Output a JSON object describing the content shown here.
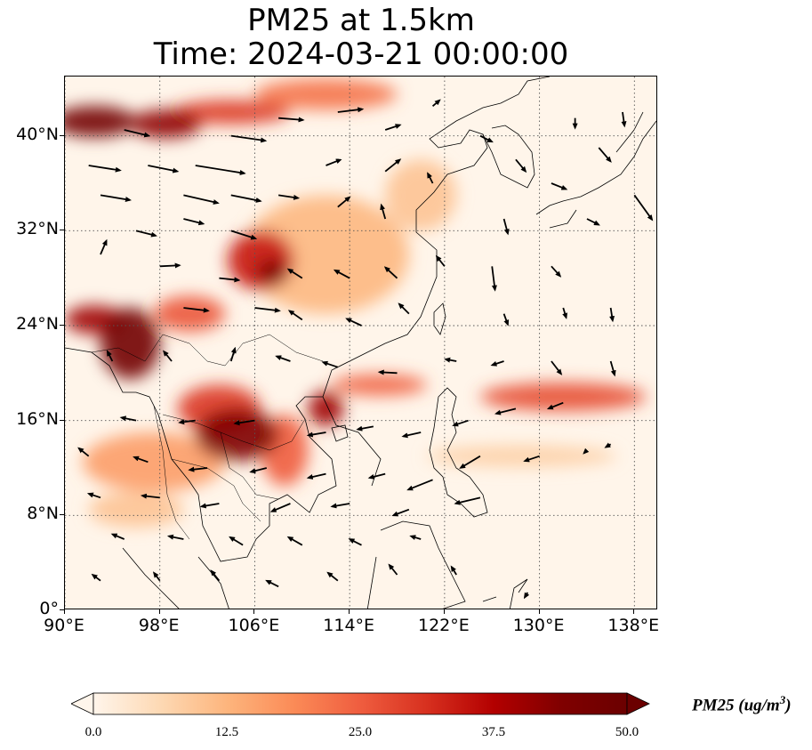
{
  "title": {
    "line1": "PM25 at 1.5km",
    "line2": "Time: 2024-03-21 00:00:00"
  },
  "map": {
    "projection": "PlateCarree",
    "lon_range": [
      90,
      140
    ],
    "lat_range": [
      0,
      45
    ],
    "gridlines": "dotted",
    "lon_ticks": [
      {
        "value": 90,
        "label": "90°E"
      },
      {
        "value": 98,
        "label": "98°E"
      },
      {
        "value": 106,
        "label": "106°E"
      },
      {
        "value": 114,
        "label": "114°E"
      },
      {
        "value": 122,
        "label": "122°E"
      },
      {
        "value": 130,
        "label": "130°E"
      },
      {
        "value": 138,
        "label": "138°E"
      }
    ],
    "lat_ticks": [
      {
        "value": 0,
        "label": "0°"
      },
      {
        "value": 8,
        "label": "8°N"
      },
      {
        "value": 16,
        "label": "16°N"
      },
      {
        "value": 24,
        "label": "24°N"
      },
      {
        "value": 32,
        "label": "32°N"
      },
      {
        "value": 40,
        "label": "40°N"
      }
    ],
    "background_color": "#fff5ea",
    "coastline_color": "#000000",
    "arrow_color": "#000000"
  },
  "pm25_plumes": [
    {
      "lon": 92.5,
      "lat": 41.2,
      "rlon": 3.5,
      "rlat": 1.3,
      "value": 48
    },
    {
      "lon": 98.5,
      "lat": 41.0,
      "rlon": 3.0,
      "rlat": 1.2,
      "value": 42
    },
    {
      "lon": 104,
      "lat": 42.0,
      "rlon": 5.0,
      "rlat": 1.0,
      "value": 30
    },
    {
      "lon": 112,
      "lat": 43.5,
      "rlon": 6.0,
      "rlat": 1.3,
      "value": 22
    },
    {
      "lon": 106.5,
      "lat": 29.5,
      "rlon": 2.8,
      "rlat": 2.5,
      "value": 34
    },
    {
      "lon": 107.5,
      "lat": 28.5,
      "rlon": 1.3,
      "rlat": 1.1,
      "value": 45
    },
    {
      "lon": 95.5,
      "lat": 22.5,
      "rlon": 2.5,
      "rlat": 3.0,
      "value": 48
    },
    {
      "lon": 92.5,
      "lat": 24.5,
      "rlon": 2.5,
      "rlat": 1.2,
      "value": 40
    },
    {
      "lon": 100.5,
      "lat": 25.0,
      "rlon": 3.0,
      "rlat": 1.5,
      "value": 26
    },
    {
      "lon": 104.5,
      "lat": 14.8,
      "rlon": 3.5,
      "rlat": 2.2,
      "value": 44
    },
    {
      "lon": 103.0,
      "lat": 17.0,
      "rlon": 3.5,
      "rlat": 2.0,
      "value": 30
    },
    {
      "lon": 108.5,
      "lat": 13.5,
      "rlon": 2.0,
      "rlat": 3.0,
      "value": 25
    },
    {
      "lon": 112.0,
      "lat": 17.0,
      "rlon": 1.5,
      "rlat": 1.5,
      "value": 40
    },
    {
      "lon": 116.5,
      "lat": 19.0,
      "rlon": 4.0,
      "rlat": 0.9,
      "value": 24
    },
    {
      "lon": 132.0,
      "lat": 18.0,
      "rlon": 7.0,
      "rlat": 1.2,
      "value": 27
    },
    {
      "lon": 97.5,
      "lat": 12.5,
      "rlon": 6.0,
      "rlat": 2.5,
      "value": 16
    },
    {
      "lon": 112.0,
      "lat": 30.0,
      "rlon": 7.0,
      "rlat": 5.0,
      "value": 12
    },
    {
      "lon": 120.0,
      "lat": 35.0,
      "rlon": 3.0,
      "rlat": 3.0,
      "value": 10
    },
    {
      "lon": 128.5,
      "lat": 13.0,
      "rlon": 8.0,
      "rlat": 0.9,
      "value": 8
    },
    {
      "lon": 96.0,
      "lat": 8.5,
      "rlon": 4.0,
      "rlat": 1.5,
      "value": 10
    }
  ],
  "wind_vectors": [
    {
      "lon": 92,
      "lat": 37.5,
      "u": 3.2,
      "v": -0.5
    },
    {
      "lon": 93,
      "lat": 35,
      "u": 3.0,
      "v": -0.5
    },
    {
      "lon": 97,
      "lat": 37.5,
      "u": 3.0,
      "v": -0.6
    },
    {
      "lon": 101,
      "lat": 37.5,
      "u": 5.0,
      "v": -0.8
    },
    {
      "lon": 100,
      "lat": 35,
      "u": 3.5,
      "v": -0.8
    },
    {
      "lon": 104,
      "lat": 35,
      "u": 3.0,
      "v": -0.6
    },
    {
      "lon": 108,
      "lat": 35,
      "u": 2.0,
      "v": -0.3
    },
    {
      "lon": 104,
      "lat": 32,
      "u": 2.5,
      "v": -0.8
    },
    {
      "lon": 96,
      "lat": 32,
      "u": 2.0,
      "v": -0.5
    },
    {
      "lon": 100,
      "lat": 33,
      "u": 2.0,
      "v": -0.5
    },
    {
      "lon": 95,
      "lat": 40.5,
      "u": 2.5,
      "v": -0.6
    },
    {
      "lon": 104,
      "lat": 40,
      "u": 3.5,
      "v": -0.5
    },
    {
      "lon": 108,
      "lat": 41.5,
      "u": 2.5,
      "v": -0.2
    },
    {
      "lon": 113,
      "lat": 42,
      "u": 2.5,
      "v": 0.3
    },
    {
      "lon": 117,
      "lat": 40.5,
      "u": 1.5,
      "v": 0.5
    },
    {
      "lon": 112,
      "lat": 37.5,
      "u": 1.5,
      "v": 0.6
    },
    {
      "lon": 117,
      "lat": 37,
      "u": 1.5,
      "v": 1.2
    },
    {
      "lon": 113,
      "lat": 34,
      "u": 1.2,
      "v": 1.0
    },
    {
      "lon": 117,
      "lat": 33,
      "u": -0.4,
      "v": 1.4
    },
    {
      "lon": 121,
      "lat": 36,
      "u": -0.5,
      "v": 1.0
    },
    {
      "lon": 125,
      "lat": 40,
      "u": 1.2,
      "v": -0.6
    },
    {
      "lon": 128,
      "lat": 38,
      "u": 1.0,
      "v": -1.2
    },
    {
      "lon": 127,
      "lat": 33,
      "u": 0.4,
      "v": -1.5
    },
    {
      "lon": 131,
      "lat": 36,
      "u": 1.5,
      "v": -0.6
    },
    {
      "lon": 135,
      "lat": 39,
      "u": 1.2,
      "v": -1.4
    },
    {
      "lon": 138,
      "lat": 35,
      "u": 1.8,
      "v": -2.5
    },
    {
      "lon": 134,
      "lat": 33,
      "u": 1.2,
      "v": -0.6
    },
    {
      "lon": 131,
      "lat": 29,
      "u": 0.9,
      "v": -1.0
    },
    {
      "lon": 126,
      "lat": 29,
      "u": 0.3,
      "v": -2.4
    },
    {
      "lon": 122,
      "lat": 29,
      "u": -0.8,
      "v": 1.0
    },
    {
      "lon": 118,
      "lat": 28,
      "u": -1.2,
      "v": 1.1
    },
    {
      "lon": 114,
      "lat": 28,
      "u": -1.5,
      "v": 0.8
    },
    {
      "lon": 110,
      "lat": 28,
      "u": -1.4,
      "v": 0.9
    },
    {
      "lon": 103,
      "lat": 28,
      "u": 2.0,
      "v": -0.2
    },
    {
      "lon": 98,
      "lat": 29,
      "u": 2.0,
      "v": 0.1
    },
    {
      "lon": 93,
      "lat": 30,
      "u": 0.6,
      "v": 1.4
    },
    {
      "lon": 100,
      "lat": 25.5,
      "u": 2.5,
      "v": -0.3
    },
    {
      "lon": 106,
      "lat": 25.5,
      "u": 2.5,
      "v": -0.3
    },
    {
      "lon": 110,
      "lat": 24.5,
      "u": -1.3,
      "v": 0.9
    },
    {
      "lon": 115,
      "lat": 24,
      "u": -1.5,
      "v": 0.7
    },
    {
      "lon": 119,
      "lat": 25,
      "u": -1.0,
      "v": 1.0
    },
    {
      "lon": 127,
      "lat": 25,
      "u": 0.4,
      "v": -1.1
    },
    {
      "lon": 132,
      "lat": 25.5,
      "u": 0.3,
      "v": -1.0
    },
    {
      "lon": 136,
      "lat": 25.5,
      "u": 0.2,
      "v": -1.3
    },
    {
      "lon": 136,
      "lat": 21,
      "u": 0.4,
      "v": -1.4
    },
    {
      "lon": 131,
      "lat": 21,
      "u": 1.0,
      "v": -1.3
    },
    {
      "lon": 127,
      "lat": 21,
      "u": -1.2,
      "v": -0.4
    },
    {
      "lon": 123,
      "lat": 21,
      "u": -1.1,
      "v": 0.2
    },
    {
      "lon": 118,
      "lat": 20,
      "u": -1.8,
      "v": 0.1
    },
    {
      "lon": 113,
      "lat": 20.5,
      "u": -1.5,
      "v": 0.5
    },
    {
      "lon": 109,
      "lat": 21,
      "u": -1.4,
      "v": 0.5
    },
    {
      "lon": 104,
      "lat": 21,
      "u": 0.4,
      "v": 1.3
    },
    {
      "lon": 99,
      "lat": 21,
      "u": -0.8,
      "v": 1.0
    },
    {
      "lon": 94,
      "lat": 21,
      "u": -0.5,
      "v": 1.0
    },
    {
      "lon": 128,
      "lat": 17,
      "u": -2.0,
      "v": -0.5
    },
    {
      "lon": 132,
      "lat": 17.5,
      "u": -1.5,
      "v": -0.6
    },
    {
      "lon": 124,
      "lat": 16,
      "u": -1.5,
      "v": -0.5
    },
    {
      "lon": 120,
      "lat": 15,
      "u": -1.8,
      "v": -0.4
    },
    {
      "lon": 116,
      "lat": 15.5,
      "u": -1.6,
      "v": -0.3
    },
    {
      "lon": 112,
      "lat": 15,
      "u": -1.8,
      "v": -0.3
    },
    {
      "lon": 106,
      "lat": 16,
      "u": -2.0,
      "v": -0.3
    },
    {
      "lon": 101,
      "lat": 16,
      "u": -1.6,
      "v": -0.2
    },
    {
      "lon": 96,
      "lat": 16,
      "u": -1.5,
      "v": 0.3
    },
    {
      "lon": 92,
      "lat": 13,
      "u": -1.0,
      "v": 0.8
    },
    {
      "lon": 97,
      "lat": 12.5,
      "u": -1.4,
      "v": 0.5
    },
    {
      "lon": 102,
      "lat": 12,
      "u": -1.8,
      "v": -0.2
    },
    {
      "lon": 107,
      "lat": 12,
      "u": -1.6,
      "v": -0.4
    },
    {
      "lon": 112,
      "lat": 11.5,
      "u": -1.8,
      "v": -0.4
    },
    {
      "lon": 117,
      "lat": 11.5,
      "u": -1.6,
      "v": -0.4
    },
    {
      "lon": 121,
      "lat": 11,
      "u": -2.5,
      "v": -1.0
    },
    {
      "lon": 125,
      "lat": 13,
      "u": -2.0,
      "v": -1.2
    },
    {
      "lon": 130,
      "lat": 13,
      "u": -1.5,
      "v": -0.5
    },
    {
      "lon": 136,
      "lat": 14,
      "u": -0.5,
      "v": -0.3
    },
    {
      "lon": 93,
      "lat": 9.5,
      "u": -1.2,
      "v": 0.4
    },
    {
      "lon": 98,
      "lat": 9.5,
      "u": -1.8,
      "v": 0.2
    },
    {
      "lon": 103,
      "lat": 9,
      "u": -1.8,
      "v": -0.3
    },
    {
      "lon": 109,
      "lat": 9,
      "u": -1.9,
      "v": -0.8
    },
    {
      "lon": 114,
      "lat": 9,
      "u": -1.8,
      "v": -0.3
    },
    {
      "lon": 119,
      "lat": 8.5,
      "u": -1.6,
      "v": -0.6
    },
    {
      "lon": 125,
      "lat": 9.5,
      "u": -2.5,
      "v": -0.6
    },
    {
      "lon": 95,
      "lat": 6,
      "u": -1.2,
      "v": 0.5
    },
    {
      "lon": 100,
      "lat": 6,
      "u": -1.5,
      "v": 0.3
    },
    {
      "lon": 105,
      "lat": 5.5,
      "u": -1.3,
      "v": 0.8
    },
    {
      "lon": 110,
      "lat": 5.5,
      "u": -1.4,
      "v": 0.8
    },
    {
      "lon": 115,
      "lat": 5.5,
      "u": -1.2,
      "v": 0.6
    },
    {
      "lon": 120,
      "lat": 6,
      "u": -1.0,
      "v": 0.3
    },
    {
      "lon": 93,
      "lat": 2.5,
      "u": -0.8,
      "v": 0.6
    },
    {
      "lon": 98,
      "lat": 2.5,
      "u": -0.6,
      "v": 0.8
    },
    {
      "lon": 103,
      "lat": 2.5,
      "u": -0.8,
      "v": 1.0
    },
    {
      "lon": 108,
      "lat": 2.0,
      "u": -1.2,
      "v": 0.6
    },
    {
      "lon": 113,
      "lat": 2.5,
      "u": -1.0,
      "v": 0.8
    },
    {
      "lon": 118,
      "lat": 3.0,
      "u": -0.8,
      "v": 1.0
    },
    {
      "lon": 123,
      "lat": 3.0,
      "u": -0.5,
      "v": 0.8
    },
    {
      "lon": 129,
      "lat": 1.5,
      "u": -0.3,
      "v": -0.5
    },
    {
      "lon": 134,
      "lat": 13.5,
      "u": -0.3,
      "v": -0.3
    },
    {
      "lon": 137,
      "lat": 42,
      "u": 0.2,
      "v": -1.4
    },
    {
      "lon": 133,
      "lat": 41.5,
      "u": 0.0,
      "v": -1.0
    },
    {
      "lon": 121,
      "lat": 42.5,
      "u": 0.7,
      "v": 0.6
    }
  ],
  "colorbar": {
    "min": 0.0,
    "max": 50.0,
    "extend": "both",
    "tick_labels": [
      "0.0",
      "12.5",
      "25.0",
      "37.5",
      "50.0"
    ],
    "label_text": "PM25 (ug/m",
    "label_sup": "3",
    "label_close": ")",
    "colormap": [
      "#fff5eb",
      "#fee6ce",
      "#fdd0a2",
      "#fdae6b",
      "#fd8d3c",
      "#f16913",
      "#d94801",
      "#a63603",
      "#7f2704"
    ],
    "colormap_oranges_red": [
      "#fff5eb",
      "#fdd9b4",
      "#fdb57d",
      "#fb8b57",
      "#ef5d3f",
      "#d7301f",
      "#b30000",
      "#800000",
      "#6b0000"
    ]
  }
}
